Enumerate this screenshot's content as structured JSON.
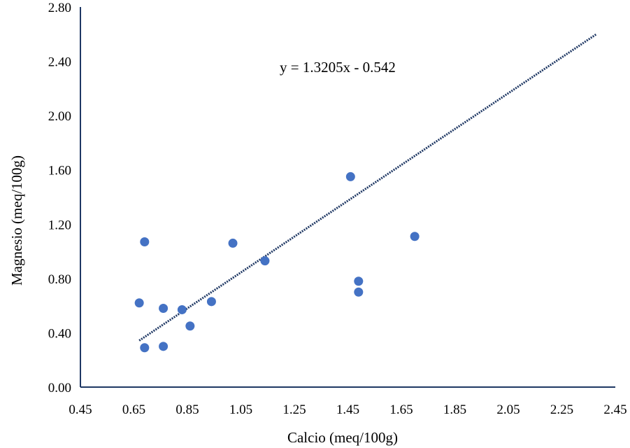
{
  "chart_data": {
    "type": "scatter",
    "title": "",
    "xlabel": "Calcio (meq/100g)",
    "ylabel": "Magnesio (meq/100g)",
    "xlim": [
      0.45,
      2.45
    ],
    "ylim": [
      0.0,
      2.8
    ],
    "x_ticks": [
      "0.45",
      "0.65",
      "0.85",
      "1.05",
      "1.25",
      "1.45",
      "1.65",
      "1.85",
      "2.05",
      "2.25",
      "2.45"
    ],
    "y_ticks": [
      "0.00",
      "0.40",
      "0.80",
      "1.20",
      "1.60",
      "2.00",
      "2.40",
      "2.80"
    ],
    "grid": false,
    "series": [
      {
        "color": "#4472c4",
        "points": [
          {
            "x": 0.67,
            "y": 0.62
          },
          {
            "x": 0.69,
            "y": 0.29
          },
          {
            "x": 0.69,
            "y": 1.07
          },
          {
            "x": 0.76,
            "y": 0.3
          },
          {
            "x": 0.76,
            "y": 0.58
          },
          {
            "x": 0.83,
            "y": 0.57
          },
          {
            "x": 0.86,
            "y": 0.45
          },
          {
            "x": 0.94,
            "y": 0.63
          },
          {
            "x": 1.02,
            "y": 1.06
          },
          {
            "x": 1.14,
            "y": 0.93
          },
          {
            "x": 1.46,
            "y": 1.55
          },
          {
            "x": 1.49,
            "y": 0.78
          },
          {
            "x": 1.49,
            "y": 0.7
          },
          {
            "x": 1.7,
            "y": 1.11
          }
        ]
      }
    ],
    "trendline": {
      "slope": 1.3205,
      "intercept": -0.542,
      "x_start": 0.67,
      "x_end": 2.38,
      "color": "#1f3864",
      "label": "y = 1.3205x - 0.542"
    },
    "axis_color": "#1f3864"
  }
}
